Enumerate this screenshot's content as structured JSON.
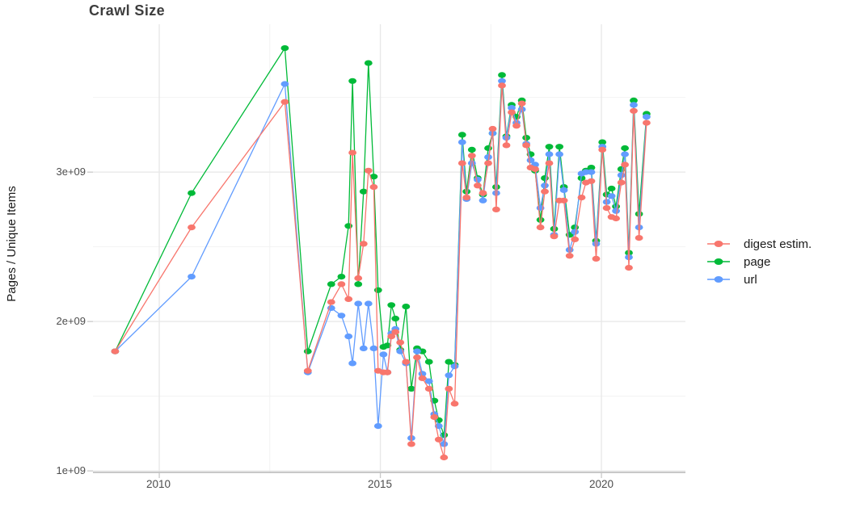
{
  "title": "Crawl Size",
  "y_axis": {
    "label": "Pages / Unique Items",
    "ticks": [
      "3e+09",
      "2e+09",
      "1e+09"
    ],
    "tick_values": [
      3000000000.0,
      2000000000.0,
      1000000000.0
    ]
  },
  "x_axis": {
    "ticks": [
      "2010",
      "2015",
      "2020"
    ],
    "tick_values": [
      2010,
      2015,
      2020
    ]
  },
  "legend": [
    {
      "label": "digest estim.",
      "color": "#F8766D"
    },
    {
      "label": "page",
      "color": "#00BA38"
    },
    {
      "label": "url",
      "color": "#619CFF"
    }
  ],
  "colors": {
    "digest": "#F8766D",
    "page": "#00BA38",
    "url": "#619CFF",
    "grid_major": "#e7e7e7",
    "grid_minor": "#f2f2f2",
    "axis_line": "#b5b5b5",
    "tick_mark": "#c9c9c9"
  },
  "chart_data": {
    "type": "line",
    "title": "Crawl Size",
    "xlabel": "",
    "ylabel": "Pages / Unique Items",
    "xlim": [
      2008.5,
      2021.9
    ],
    "ylim": [
      990000000.0,
      3990000000.0
    ],
    "x_ticks": [
      2010,
      2015,
      2020
    ],
    "y_ticks": [
      1000000000.0,
      2000000000.0,
      3000000000.0
    ],
    "x_minor": [
      2012.5,
      2017.5
    ],
    "y_minor": [
      1500000000.0,
      2500000000.0,
      3500000000.0
    ],
    "grid": true,
    "legend_position": "right",
    "x": [
      2009.0,
      2010.73,
      2012.84,
      2013.36,
      2013.89,
      2014.12,
      2014.28,
      2014.37,
      2014.5,
      2014.62,
      2014.73,
      2014.85,
      2014.95,
      2015.07,
      2015.16,
      2015.25,
      2015.34,
      2015.45,
      2015.58,
      2015.7,
      2015.83,
      2015.95,
      2016.1,
      2016.22,
      2016.32,
      2016.44,
      2016.55,
      2016.68,
      2016.85,
      2016.95,
      2017.07,
      2017.2,
      2017.32,
      2017.44,
      2017.54,
      2017.62,
      2017.75,
      2017.85,
      2017.97,
      2018.08,
      2018.2,
      2018.3,
      2018.4,
      2018.5,
      2018.62,
      2018.72,
      2018.82,
      2018.93,
      2019.05,
      2019.15,
      2019.28,
      2019.4,
      2019.55,
      2019.65,
      2019.77,
      2019.88,
      2020.02,
      2020.12,
      2020.23,
      2020.33,
      2020.45,
      2020.53,
      2020.62,
      2020.73,
      2020.85,
      2021.02
    ],
    "series": [
      {
        "name": "page",
        "color": "#00BA38",
        "values": [
          1800000000.0,
          2860000000.0,
          3830000000.0,
          1800000000.0,
          2250000000.0,
          2300000000.0,
          2640000000.0,
          3610000000.0,
          2250000000.0,
          2870000000.0,
          3730000000.0,
          2970000000.0,
          2210000000.0,
          1830000000.0,
          1840000000.0,
          2110000000.0,
          2020000000.0,
          1810000000.0,
          2100000000.0,
          1550000000.0,
          1820000000.0,
          1800000000.0,
          1730000000.0,
          1470000000.0,
          1340000000.0,
          1240000000.0,
          1730000000.0,
          1710000000.0,
          3250000000.0,
          2870000000.0,
          3150000000.0,
          2960000000.0,
          2850000000.0,
          3160000000.0,
          3260000000.0,
          2900000000.0,
          3650000000.0,
          3240000000.0,
          3450000000.0,
          3370000000.0,
          3480000000.0,
          3230000000.0,
          3120000000.0,
          3010000000.0,
          2680000000.0,
          2960000000.0,
          3170000000.0,
          2620000000.0,
          3170000000.0,
          2900000000.0,
          2580000000.0,
          2630000000.0,
          2960000000.0,
          3010000000.0,
          3030000000.0,
          2540000000.0,
          3200000000.0,
          2850000000.0,
          2890000000.0,
          2770000000.0,
          3020000000.0,
          3160000000.0,
          2460000000.0,
          3480000000.0,
          2720000000.0,
          3390000000.0
        ]
      },
      {
        "name": "url",
        "color": "#619CFF",
        "values": [
          1800000000.0,
          2300000000.0,
          3590000000.0,
          1660000000.0,
          2090000000.0,
          2040000000.0,
          1900000000.0,
          1720000000.0,
          2120000000.0,
          1820000000.0,
          2120000000.0,
          1820000000.0,
          1300000000.0,
          1780000000.0,
          1660000000.0,
          1920000000.0,
          1950000000.0,
          1800000000.0,
          1720000000.0,
          1220000000.0,
          1800000000.0,
          1650000000.0,
          1600000000.0,
          1380000000.0,
          1300000000.0,
          1180000000.0,
          1640000000.0,
          1700000000.0,
          3200000000.0,
          2820000000.0,
          3060000000.0,
          2950000000.0,
          2810000000.0,
          3100000000.0,
          3260000000.0,
          2860000000.0,
          3610000000.0,
          3230000000.0,
          3430000000.0,
          3330000000.0,
          3420000000.0,
          3190000000.0,
          3080000000.0,
          3050000000.0,
          2760000000.0,
          2910000000.0,
          3120000000.0,
          2580000000.0,
          3120000000.0,
          2880000000.0,
          2480000000.0,
          2600000000.0,
          2990000000.0,
          3000000000.0,
          3000000000.0,
          2520000000.0,
          3170000000.0,
          2800000000.0,
          2840000000.0,
          2740000000.0,
          2980000000.0,
          3120000000.0,
          2430000000.0,
          3450000000.0,
          2630000000.0,
          3370000000.0
        ]
      },
      {
        "name": "digest estim.",
        "color": "#F8766D",
        "values": [
          1800000000.0,
          2630000000.0,
          3470000000.0,
          1670000000.0,
          2130000000.0,
          2250000000.0,
          2150000000.0,
          3130000000.0,
          2290000000.0,
          2520000000.0,
          3010000000.0,
          2900000000.0,
          1670000000.0,
          1660000000.0,
          1660000000.0,
          1900000000.0,
          1930000000.0,
          1860000000.0,
          1730000000.0,
          1180000000.0,
          1760000000.0,
          1620000000.0,
          1550000000.0,
          1360000000.0,
          1210000000.0,
          1090000000.0,
          1550000000.0,
          1450000000.0,
          3060000000.0,
          2830000000.0,
          3110000000.0,
          2910000000.0,
          2860000000.0,
          3060000000.0,
          3290000000.0,
          2750000000.0,
          3580000000.0,
          3180000000.0,
          3400000000.0,
          3310000000.0,
          3460000000.0,
          3180000000.0,
          3030000000.0,
          3020000000.0,
          2630000000.0,
          2870000000.0,
          3060000000.0,
          2570000000.0,
          2810000000.0,
          2810000000.0,
          2440000000.0,
          2550000000.0,
          2830000000.0,
          2930000000.0,
          2940000000.0,
          2420000000.0,
          3150000000.0,
          2760000000.0,
          2700000000.0,
          2690000000.0,
          2930000000.0,
          3050000000.0,
          2360000000.0,
          3410000000.0,
          2560000000.0,
          3330000000.0
        ]
      }
    ]
  }
}
